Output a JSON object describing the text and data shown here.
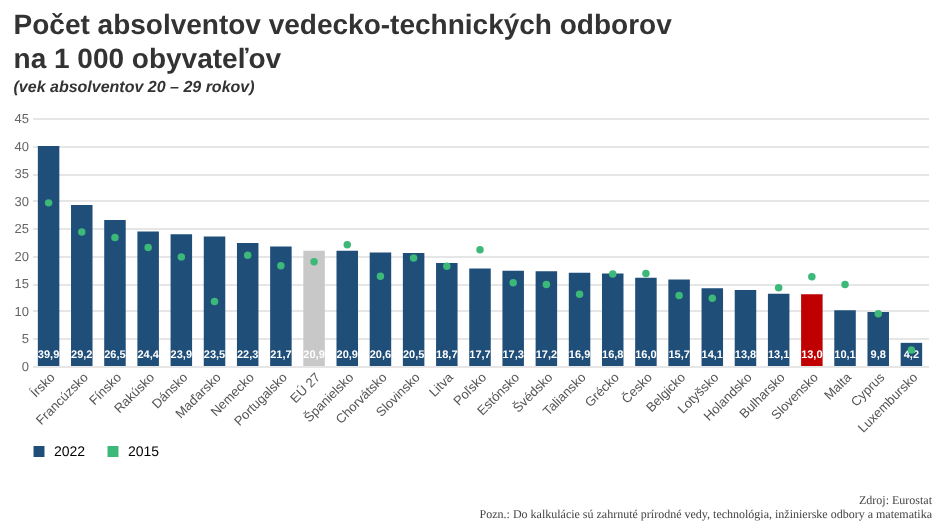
{
  "chart_data": {
    "type": "bar",
    "title": "Počet absolventov vedecko-technických odborov\nna 1 000 obyvateľov",
    "subtitle": "(vek absolventov 20 – 29 rokov)",
    "categories": [
      "Írsko",
      "Francúzsko",
      "Fínsko",
      "Rakúsko",
      "Dánsko",
      "Maďarsko",
      "Nemecko",
      "Portugalsko",
      "EÚ 27",
      "Španielsko",
      "Chorvátsko",
      "Slovinsko",
      "Litva",
      "Poľsko",
      "Estónsko",
      "Švédsko",
      "Taliansko",
      "Grécko",
      "Česko",
      "Belgicko",
      "Lotyšsko",
      "Holandsko",
      "Bulharsko",
      "Slovensko",
      "Malta",
      "Cyprus",
      "Luxembursko"
    ],
    "series": [
      {
        "name": "2022",
        "color": "#1f4e79",
        "colors": [
          "#1f4e79",
          "#1f4e79",
          "#1f4e79",
          "#1f4e79",
          "#1f4e79",
          "#1f4e79",
          "#1f4e79",
          "#1f4e79",
          "#c8c8c8",
          "#1f4e79",
          "#1f4e79",
          "#1f4e79",
          "#1f4e79",
          "#1f4e79",
          "#1f4e79",
          "#1f4e79",
          "#1f4e79",
          "#1f4e79",
          "#1f4e79",
          "#1f4e79",
          "#1f4e79",
          "#1f4e79",
          "#1f4e79",
          "#c00000",
          "#1f4e79",
          "#1f4e79",
          "#1f4e79"
        ],
        "values": [
          39.9,
          29.2,
          26.5,
          24.4,
          23.9,
          23.5,
          22.3,
          21.7,
          20.9,
          20.9,
          20.6,
          20.5,
          18.7,
          17.7,
          17.3,
          17.2,
          16.9,
          16.8,
          16.0,
          15.7,
          14.1,
          13.8,
          13.1,
          13.0,
          10.1,
          9.8,
          4.2
        ],
        "value_labels": [
          "39,9",
          "29,2",
          "26,5",
          "24,4",
          "23,9",
          "23,5",
          "22,3",
          "21,7",
          "20,9",
          "20,9",
          "20,6",
          "20,5",
          "18,7",
          "17,7",
          "17,3",
          "17,2",
          "16,9",
          "16,8",
          "16,0",
          "15,7",
          "14,1",
          "13,8",
          "13,1",
          "13,0",
          "10,1",
          "9,8",
          "4,2"
        ]
      },
      {
        "name": "2015",
        "type": "scatter",
        "color": "#3cb878",
        "values": [
          29.6,
          24.3,
          23.3,
          21.5,
          19.8,
          11.7,
          20.1,
          18.2,
          18.9,
          22.0,
          16.3,
          19.6,
          18.1,
          21.1,
          15.1,
          14.8,
          13.0,
          16.7,
          16.8,
          12.8,
          12.3,
          null,
          14.2,
          16.2,
          14.8,
          9.5,
          2.9
        ]
      }
    ],
    "marker": "circle",
    "ylim": [
      0,
      45
    ],
    "yticks": [
      0,
      5,
      10,
      15,
      20,
      25,
      30,
      35,
      40,
      45
    ],
    "grid": "y",
    "legend": "bottom",
    "annotations": [
      "Zdroj: Eurostat",
      "Pozn.: Do kalkulácie sú zahrnuté prírodné vedy, technológia, inžinierske odbory a matematika"
    ]
  }
}
